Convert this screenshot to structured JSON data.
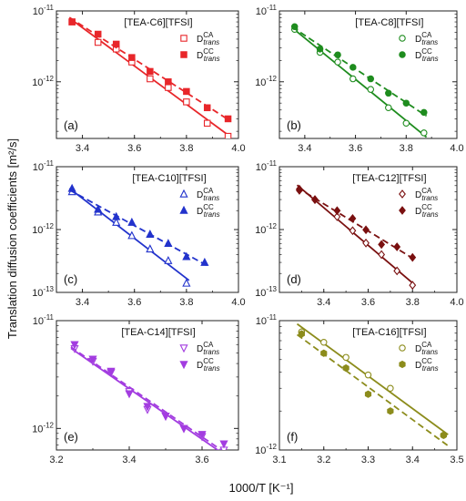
{
  "figure": {
    "ylabel": "Translation diffusion coefficients [m²/s]",
    "xlabel": "1000/T [K⁻¹]"
  },
  "chart_data": [
    {
      "type": "scatter",
      "label": "(a)",
      "title": "[TEA-C6][TFSI]",
      "color": "#e8262a",
      "xlim": [
        3.3,
        4.0
      ],
      "xticks": [
        "3.4",
        "3.6",
        "3.8",
        "4.0"
      ],
      "xtickvals": [
        3.4,
        3.6,
        3.8,
        4.0
      ],
      "ylim_exp": [
        -12.8,
        -11
      ],
      "series": [
        {
          "name": "D_trans^CA",
          "marker": "open-square",
          "line": "solid",
          "x": [
            3.36,
            3.46,
            3.53,
            3.59,
            3.66,
            3.73,
            3.8,
            3.88,
            3.96
          ],
          "y": [
            7e-12,
            3.6e-12,
            2.9e-12,
            1.9e-12,
            1.1e-12,
            8.3e-13,
            5.2e-13,
            2.6e-13,
            1.7e-13
          ]
        },
        {
          "name": "D_trans^CC",
          "marker": "filled-square",
          "line": "dashed",
          "x": [
            3.36,
            3.46,
            3.53,
            3.59,
            3.66,
            3.73,
            3.8,
            3.88,
            3.96
          ],
          "y": [
            7e-12,
            4.7e-12,
            3.4e-12,
            2.2e-12,
            1.4e-12,
            1e-12,
            7.3e-13,
            4.3e-13,
            3e-13
          ]
        }
      ]
    },
    {
      "type": "scatter",
      "label": "(b)",
      "title": "[TEA-C8][TFSI]",
      "color": "#1e8c1e",
      "xlim": [
        3.3,
        4.0
      ],
      "xticks": [
        "3.4",
        "3.6",
        "3.8",
        "4.0"
      ],
      "xtickvals": [
        3.4,
        3.6,
        3.8,
        4.0
      ],
      "ylim_exp": [
        -12.8,
        -11
      ],
      "series": [
        {
          "name": "D_trans^CA",
          "marker": "open-circle",
          "line": "solid",
          "x": [
            3.36,
            3.46,
            3.53,
            3.59,
            3.66,
            3.73,
            3.8,
            3.87
          ],
          "y": [
            5.5e-12,
            2.6e-12,
            1.9e-12,
            1.1e-12,
            7.8e-13,
            4.3e-13,
            2.6e-13,
            1.9e-13
          ]
        },
        {
          "name": "D_trans^CC",
          "marker": "filled-circle",
          "line": "dashed",
          "x": [
            3.36,
            3.46,
            3.53,
            3.59,
            3.66,
            3.73,
            3.8,
            3.87
          ],
          "y": [
            6e-12,
            2.9e-12,
            2.4e-12,
            1.6e-12,
            1.1e-12,
            6.9e-13,
            5e-13,
            3.7e-13
          ]
        }
      ]
    },
    {
      "type": "scatter",
      "label": "(c)",
      "title": "[TEA-C10][TFSI]",
      "color": "#2233cc",
      "xlim": [
        3.3,
        4.0
      ],
      "xticks": [
        "3.4",
        "3.6",
        "3.8",
        "4.0"
      ],
      "xtickvals": [
        3.4,
        3.6,
        3.8,
        4.0
      ],
      "ylim_exp": [
        -13,
        -11
      ],
      "series": [
        {
          "name": "D_trans^CA",
          "marker": "open-triangle",
          "line": "solid",
          "x": [
            3.36,
            3.46,
            3.53,
            3.59,
            3.66,
            3.73,
            3.8
          ],
          "y": [
            4e-12,
            1.9e-12,
            1.3e-12,
            8e-13,
            4.9e-13,
            3.2e-13,
            1.4e-13
          ]
        },
        {
          "name": "D_trans^CC",
          "marker": "filled-triangle",
          "line": "dashed",
          "x": [
            3.36,
            3.46,
            3.53,
            3.59,
            3.66,
            3.73,
            3.8,
            3.87
          ],
          "y": [
            4.5e-12,
            2.1e-12,
            1.6e-12,
            1.3e-12,
            8.4e-13,
            6e-13,
            3.7e-13,
            3e-13
          ]
        }
      ]
    },
    {
      "type": "scatter",
      "label": "(d)",
      "title": "[TEA-C12][TFSI]",
      "color": "#7a1010",
      "xlim": [
        3.2,
        4.0
      ],
      "xticks": [
        "3.4",
        "3.6",
        "3.8",
        "4.0"
      ],
      "xtickvals": [
        3.4,
        3.6,
        3.8,
        4.0
      ],
      "ylim_exp": [
        -13,
        -11
      ],
      "series": [
        {
          "name": "D_trans^CA",
          "marker": "open-diamond",
          "line": "solid",
          "x": [
            3.29,
            3.36,
            3.46,
            3.53,
            3.59,
            3.66,
            3.73,
            3.8
          ],
          "y": [
            4.2e-12,
            3e-12,
            1.6e-12,
            9.6e-13,
            6.1e-13,
            4e-13,
            2.2e-13,
            1.3e-13
          ]
        },
        {
          "name": "D_trans^CC",
          "marker": "filled-diamond",
          "line": "dashed",
          "x": [
            3.29,
            3.36,
            3.46,
            3.53,
            3.59,
            3.66,
            3.73,
            3.8
          ],
          "y": [
            4.4e-12,
            3e-12,
            2e-12,
            1.5e-12,
            9.9e-13,
            5.8e-13,
            5.3e-13,
            3.6e-13
          ]
        }
      ]
    },
    {
      "type": "scatter",
      "label": "(e)",
      "title": "[TEA-C14][TFSI]",
      "color": "#a33de0",
      "xlim": [
        3.2,
        3.7
      ],
      "xticks": [
        "3.2",
        "3.4",
        "3.6"
      ],
      "xtickvals": [
        3.2,
        3.4,
        3.6
      ],
      "ylim_exp": [
        -12.2,
        -11
      ],
      "series": [
        {
          "name": "D_trans^CA",
          "marker": "open-triangle-down",
          "line": "solid",
          "x": [
            3.25,
            3.3,
            3.35,
            3.4,
            3.45,
            3.5,
            3.55,
            3.6,
            3.66
          ],
          "y": [
            5.5e-12,
            4.2e-12,
            3.3e-12,
            2.2e-12,
            1.5e-12,
            1.3e-12,
            1e-12,
            8.4e-13,
            6.3e-13
          ]
        },
        {
          "name": "D_trans^CC",
          "marker": "filled-triangle-down",
          "line": "dashed",
          "x": [
            3.25,
            3.3,
            3.35,
            3.4,
            3.45,
            3.5,
            3.55,
            3.6,
            3.66
          ],
          "y": [
            6e-12,
            4.4e-12,
            3.4e-12,
            2.1e-12,
            1.6e-12,
            1.3e-12,
            1e-12,
            8.8e-13,
            7.2e-13
          ]
        }
      ]
    },
    {
      "type": "scatter",
      "label": "(f)",
      "title": "[TEA-C16][TFSI]",
      "color": "#8c8c1c",
      "xlim": [
        3.1,
        3.5
      ],
      "xticks": [
        "3.1",
        "3.2",
        "3.3",
        "3.4",
        "3.5"
      ],
      "xtickvals": [
        3.1,
        3.2,
        3.3,
        3.4,
        3.5
      ],
      "ylim_exp": [
        -12,
        -11
      ],
      "series": [
        {
          "name": "D_trans^CA",
          "marker": "open-circle",
          "line": "solid",
          "x": [
            3.15,
            3.2,
            3.25,
            3.3,
            3.35,
            3.47
          ],
          "y": [
            8.2e-12,
            6.8e-12,
            5.2e-12,
            3.8e-12,
            3e-12,
            1.3e-12
          ]
        },
        {
          "name": "D_trans^CC",
          "marker": "filled-hexagon",
          "line": "dashed",
          "x": [
            3.15,
            3.2,
            3.25,
            3.3,
            3.35,
            3.47
          ],
          "y": [
            7.9e-12,
            5.6e-12,
            4.3e-12,
            2.7e-12,
            2e-12,
            1.3e-12
          ]
        }
      ]
    }
  ]
}
